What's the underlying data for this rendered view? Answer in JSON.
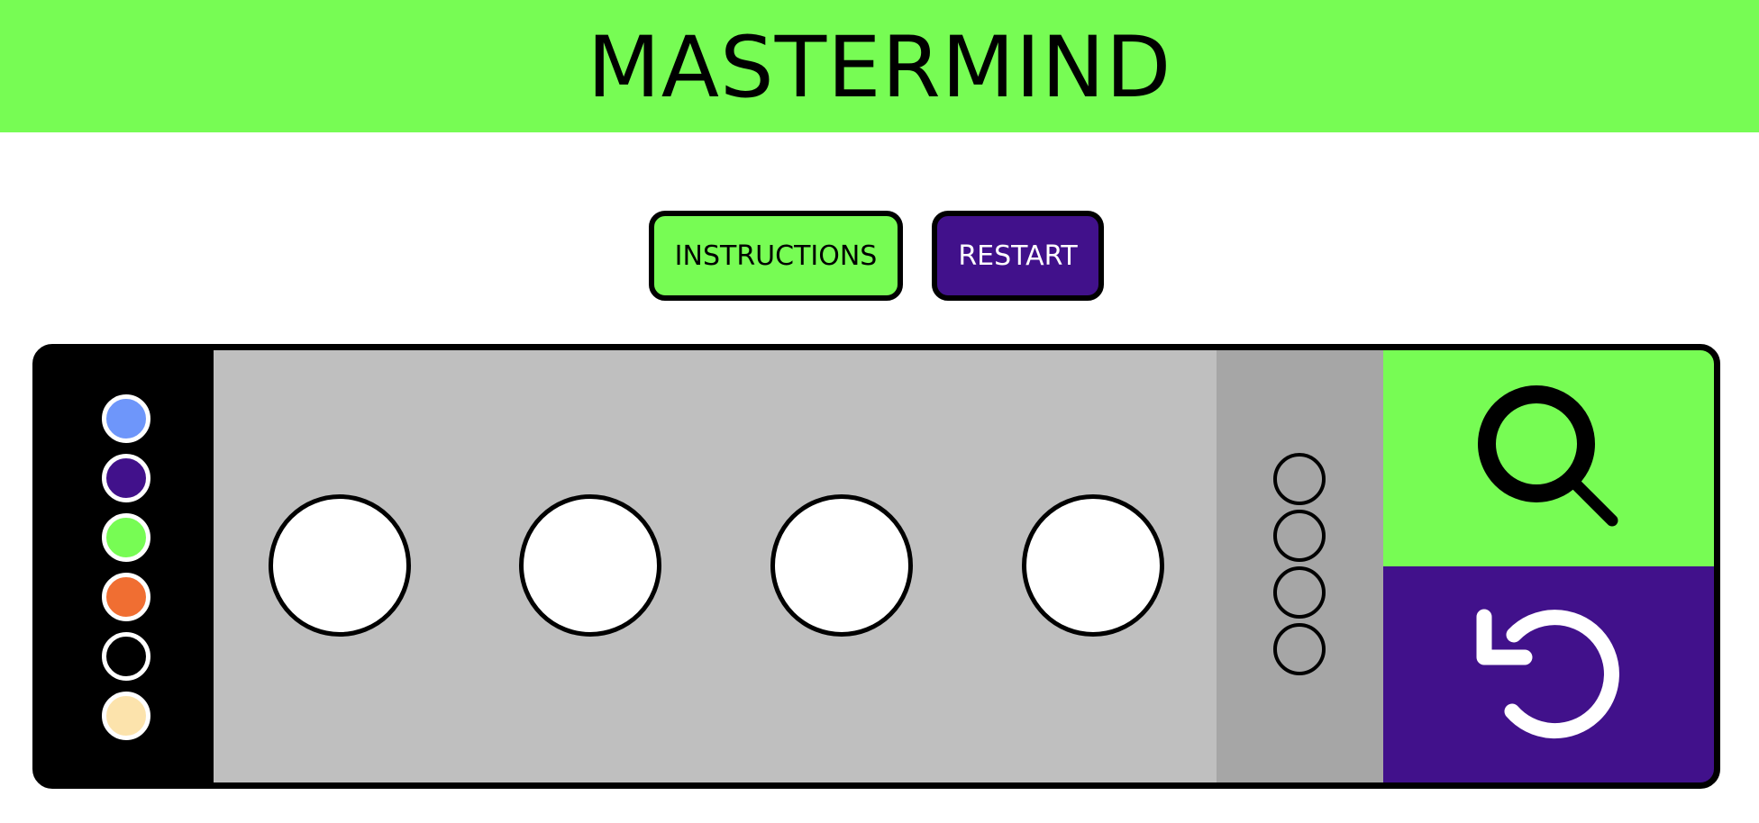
{
  "header": {
    "title": "MASTERMIND"
  },
  "controls": {
    "instructions_label": "INSTRUCTIONS",
    "restart_label": "RESTART"
  },
  "colors": {
    "accent_green": "#77fc54",
    "accent_purple": "#41118b",
    "guess_area_bg": "#bfbfbf",
    "feedback_area_bg": "#a6a6a6"
  },
  "palette": [
    {
      "name": "blue",
      "color": "#6e96fa"
    },
    {
      "name": "purple",
      "color": "#41118b"
    },
    {
      "name": "green",
      "color": "#77fc54"
    },
    {
      "name": "orange",
      "color": "#f06e32"
    },
    {
      "name": "black",
      "color": "#000000"
    },
    {
      "name": "cream",
      "color": "#fce3ac"
    }
  ],
  "guess_slots": [
    {
      "color": "#ffffff"
    },
    {
      "color": "#ffffff"
    },
    {
      "color": "#ffffff"
    },
    {
      "color": "#ffffff"
    }
  ],
  "feedback_pegs": [
    {
      "state": "empty"
    },
    {
      "state": "empty"
    },
    {
      "state": "empty"
    },
    {
      "state": "empty"
    }
  ],
  "actions": {
    "check_icon": "magnifier-icon",
    "reset_icon": "undo-icon"
  }
}
